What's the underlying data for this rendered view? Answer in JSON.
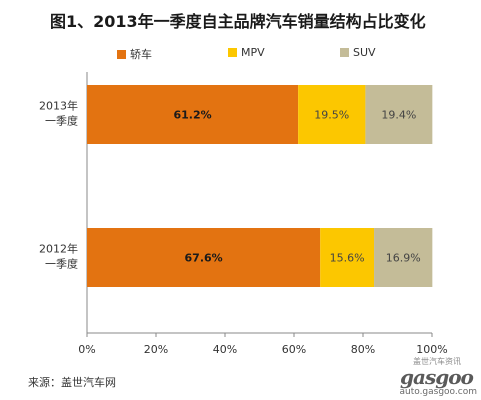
{
  "title": "图1、2013年一季度自主品牌汽车销量结构占比变化",
  "source": "来源：盖世汽车网",
  "watermark": {
    "top": "盖世汽车资讯",
    "main": "gasgoo",
    "url": "auto.gasgoo.com"
  },
  "chart_data": {
    "type": "bar",
    "orientation": "horizontal",
    "stacked": true,
    "categories": [
      "2013年\n一季度",
      "2012年\n一季度"
    ],
    "series": [
      {
        "name": "轿车",
        "values": [
          61.2,
          67.6
        ],
        "labels": [
          "61.2%",
          "67.6%"
        ],
        "color": "#E37311"
      },
      {
        "name": "MPV",
        "values": [
          19.5,
          15.6
        ],
        "labels": [
          "19.5%",
          "15.6%"
        ],
        "color": "#FCC700"
      },
      {
        "name": "SUV",
        "values": [
          19.4,
          16.9
        ],
        "labels": [
          "19.4%",
          "16.9%"
        ],
        "color": "#C4BC98"
      }
    ],
    "xlim": [
      0,
      100
    ],
    "xticks": [
      "0%",
      "20%",
      "40%",
      "60%",
      "80%",
      "100%"
    ],
    "legend_position": "top",
    "grid": false
  }
}
